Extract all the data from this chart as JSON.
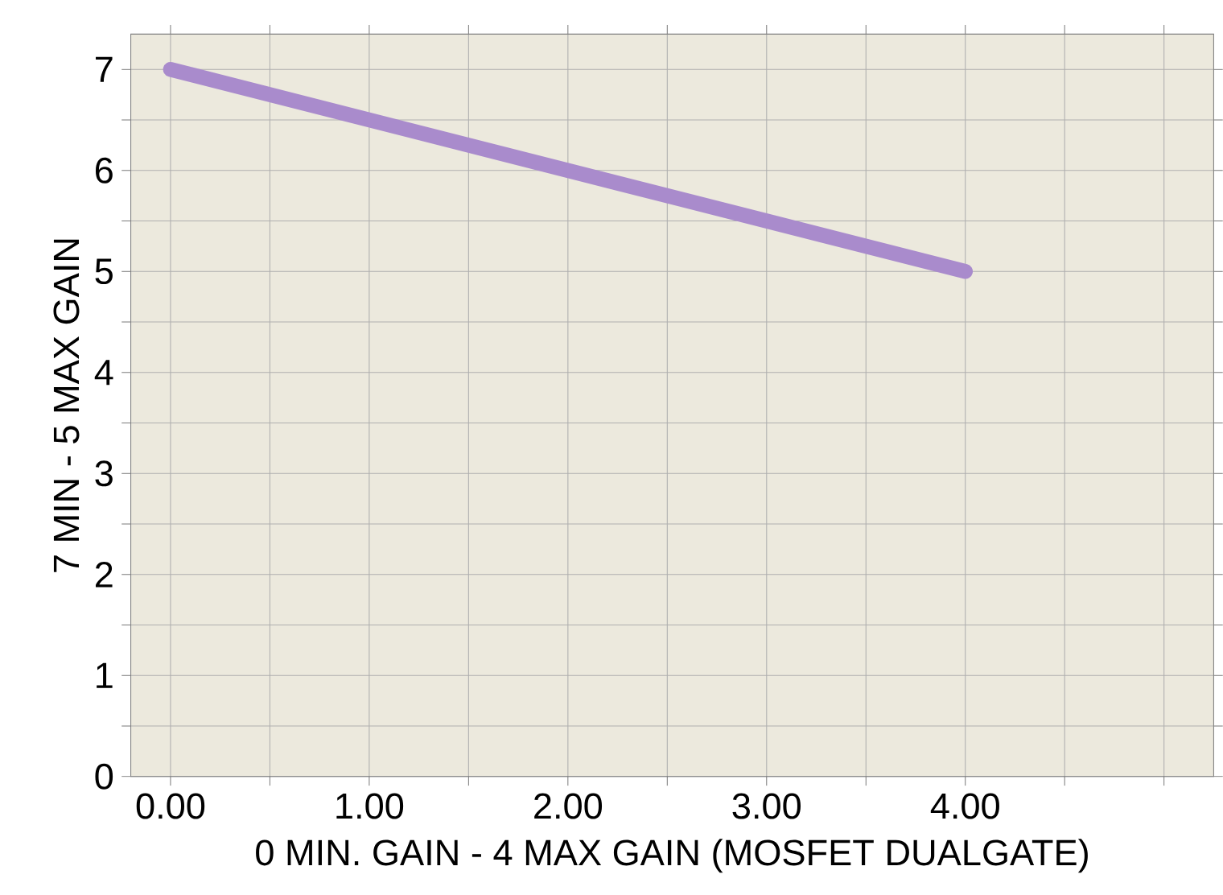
{
  "chart_data": {
    "type": "line",
    "xlabel": "0 MIN. GAIN - 4 MAX GAIN (MOSFET DUALGATE)",
    "ylabel": "7 MIN - 5 MAX GAIN",
    "x": [
      0,
      4
    ],
    "series": [
      {
        "color": "#a98bcc",
        "values": [
          7,
          5
        ]
      }
    ],
    "xlim": [
      -0.2,
      5.25
    ],
    "xticks": [
      {
        "value": 0,
        "label": "0.00"
      },
      {
        "value": 0.5,
        "label": null
      },
      {
        "value": 1,
        "label": "1.00"
      },
      {
        "value": 1.5,
        "label": null
      },
      {
        "value": 2,
        "label": "2.00"
      },
      {
        "value": 2.5,
        "label": null
      },
      {
        "value": 3,
        "label": "3.00"
      },
      {
        "value": 3.5,
        "label": null
      },
      {
        "value": 4,
        "label": "4.00"
      },
      {
        "value": 4.5,
        "label": null
      },
      {
        "value": 5,
        "label": null
      }
    ],
    "ylim": [
      0,
      7.35
    ],
    "yticks": [
      0,
      {
        "value": 0.5,
        "label": null
      },
      1,
      {
        "value": 1.5,
        "label": null
      },
      2,
      {
        "value": 2.5,
        "label": null
      },
      3,
      {
        "value": 3.5,
        "label": null
      },
      4,
      {
        "value": 4.5,
        "label": null
      },
      5,
      {
        "value": 5.5,
        "label": null
      },
      6,
      {
        "value": 6.5,
        "label": null
      },
      7
    ],
    "grid": true,
    "marker": "none",
    "line_style": "solid"
  }
}
